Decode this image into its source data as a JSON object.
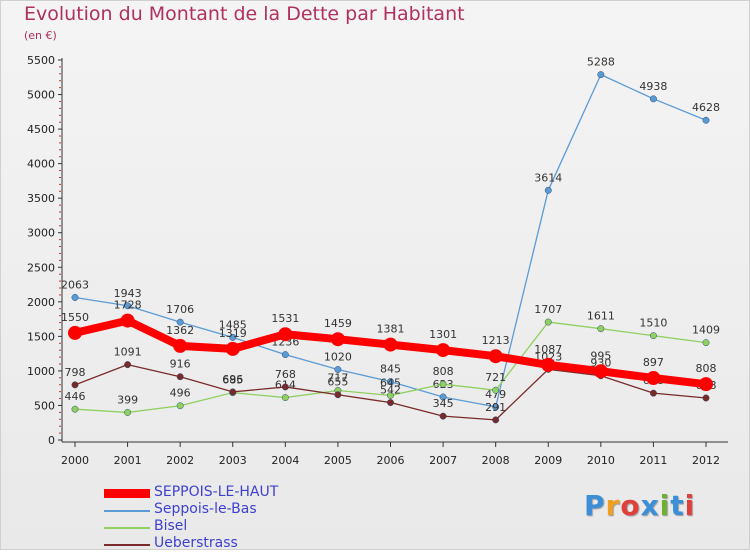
{
  "title": "Evolution du Montant de la Dette par Habitant",
  "subtitle": "(en €)",
  "logo": {
    "text": "Proxiti",
    "colors": [
      "#3a8fd8",
      "#f0a020",
      "#e0403a",
      "#3a8fd8",
      "#70b030",
      "#3a8fd8",
      "#e0403a"
    ]
  },
  "chart_data": {
    "type": "line",
    "x": [
      "2000",
      "2001",
      "2002",
      "2003",
      "2004",
      "2005",
      "2006",
      "2007",
      "2008",
      "2009",
      "2010",
      "2011",
      "2012"
    ],
    "ylim": [
      0,
      5500
    ],
    "yticks": [
      "0",
      "500",
      "1000",
      "1500",
      "2000",
      "2500",
      "3000",
      "3500",
      "4000",
      "4500",
      "5000",
      "5500"
    ],
    "grid": false,
    "legend_position": "bottom-left",
    "series": [
      {
        "name": "Seppois-le-Bas",
        "color": "#5b9bd5",
        "weight": "thin",
        "values": [
          2063,
          1943,
          1706,
          1485,
          1236,
          1020,
          845,
          623,
          479,
          3614,
          5288,
          4938,
          4628
        ],
        "labels": [
          "2063",
          "1943",
          "1706",
          "1485",
          "1236",
          "1020",
          "845",
          "623",
          "479",
          "3614",
          "5288",
          "4938",
          "4628"
        ]
      },
      {
        "name": "Bisel",
        "color": "#90d060",
        "weight": "thin",
        "values": [
          446,
          399,
          496,
          685,
          614,
          717,
          645,
          808,
          721,
          1707,
          1611,
          1510,
          1409
        ],
        "labels": [
          "446",
          "399",
          "496",
          "685",
          "614",
          "717",
          "645",
          "808",
          "721",
          "1707",
          "1611",
          "1510",
          "1409"
        ]
      },
      {
        "name": "Ueberstrass",
        "color": "#7a2a2a",
        "weight": "thin",
        "values": [
          798,
          1091,
          916,
          696,
          768,
          655,
          542,
          345,
          291,
          1023,
          930,
          678,
          608
        ],
        "labels": [
          "798",
          "1091",
          "916",
          "696",
          "768",
          "655",
          "542",
          "345",
          "291",
          "1023",
          "930",
          "678",
          "608"
        ]
      },
      {
        "name": "SEPPOIS-LE-HAUT",
        "color": "#ff0000",
        "weight": "thick",
        "values": [
          1550,
          1728,
          1362,
          1319,
          1531,
          1459,
          1381,
          1301,
          1213,
          1087,
          995,
          897,
          808
        ],
        "labels": [
          "1550",
          "1728",
          "1362",
          "1319",
          "1531",
          "1459",
          "1381",
          "1301",
          "1213",
          "1087",
          "995",
          "897",
          "808"
        ]
      }
    ],
    "legend": [
      {
        "name": "SEPPOIS-LE-HAUT",
        "color": "#ff0000",
        "text_color": "#4040d0"
      },
      {
        "name": "Seppois-le-Bas",
        "color": "#5b9bd5",
        "text_color": "#4040d0"
      },
      {
        "name": "Bisel",
        "color": "#90d060",
        "text_color": "#4040d0"
      },
      {
        "name": "Ueberstrass",
        "color": "#7a2a2a",
        "text_color": "#4040d0"
      }
    ]
  }
}
